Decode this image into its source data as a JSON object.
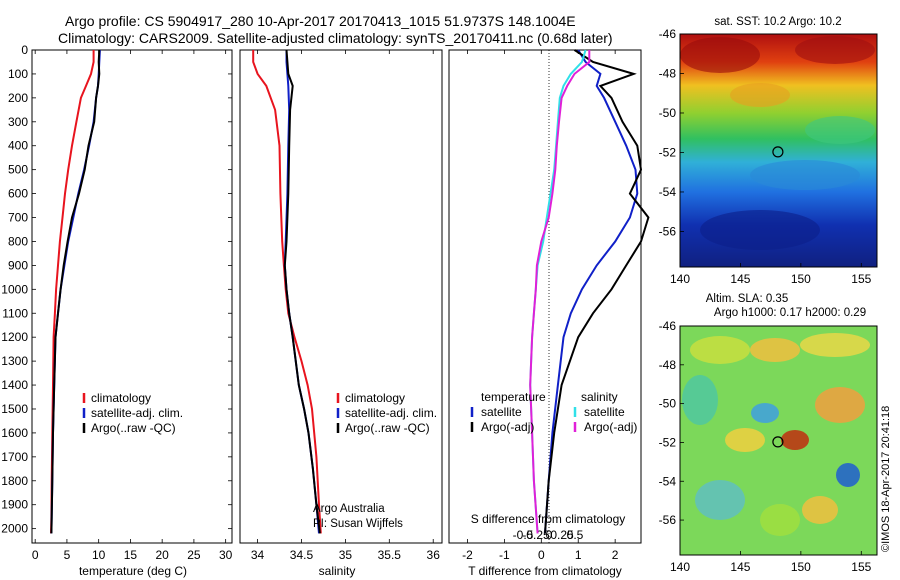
{
  "header": {
    "line1": "Argo profile: CS 5904917_280 10-Apr-2017 20170413_1015 51.9737S 148.1004E",
    "line2": "Climatology: CARS2009. Satellite-adjusted climatology: synTS_20170411.nc (0.68d later)"
  },
  "colors": {
    "climatology": "#e8141e",
    "satellite": "#1020c8",
    "argo": "#000000",
    "satellite_s": "#30e0e8",
    "argo_s": "#e020d8"
  },
  "chart_data": [
    {
      "type": "line",
      "id": "temperature",
      "xlabel": "temperature (deg C)",
      "ylabel": "",
      "xlim": [
        -0.5,
        31
      ],
      "ylim": [
        0,
        2060
      ],
      "y_inverted": true,
      "xticks": [
        0,
        5,
        10,
        15,
        20,
        25,
        30
      ],
      "yticks": [
        0,
        100,
        200,
        300,
        400,
        500,
        600,
        700,
        800,
        900,
        1000,
        1100,
        1200,
        1300,
        1400,
        1500,
        1600,
        1700,
        1800,
        1900,
        2000
      ],
      "legend": {
        "placement": "lower-center",
        "entries": [
          "climatology",
          "satellite-adj. clim.",
          "Argo(..raw -QC)"
        ]
      },
      "series": [
        {
          "name": "climatology",
          "color": "#e8141e",
          "x": [
            9.2,
            9.2,
            8.8,
            8.0,
            7.2,
            6.5,
            5.8,
            5.2,
            4.7,
            4.3,
            3.9,
            3.6,
            3.3,
            3.1,
            2.9,
            2.8,
            2.7,
            2.6,
            2.55,
            2.5
          ],
          "y": [
            0,
            50,
            100,
            150,
            200,
            300,
            400,
            500,
            600,
            700,
            800,
            900,
            1000,
            1100,
            1200,
            1400,
            1600,
            1800,
            1950,
            2020
          ]
        },
        {
          "name": "satellite-adj. clim.",
          "color": "#1020c8",
          "x": [
            10.2,
            10.1,
            10.0,
            9.9,
            9.6,
            9.2,
            8.5,
            7.7,
            6.8,
            6.0,
            5.2,
            4.6,
            4.0,
            3.6,
            3.2,
            3.0,
            2.8,
            2.7,
            2.6,
            2.55
          ],
          "y": [
            0,
            50,
            100,
            150,
            200,
            300,
            400,
            500,
            600,
            700,
            800,
            900,
            1000,
            1100,
            1200,
            1400,
            1600,
            1800,
            1950,
            2020
          ]
        },
        {
          "name": "Argo(..raw -QC)",
          "color": "#000000",
          "x": [
            10.1,
            10.0,
            10.1,
            9.9,
            9.6,
            9.3,
            8.4,
            7.8,
            6.9,
            5.8,
            5.1,
            4.5,
            4.0,
            3.6,
            3.2,
            3.0,
            2.8,
            2.7,
            2.6,
            2.55
          ],
          "y": [
            0,
            50,
            100,
            150,
            200,
            300,
            400,
            500,
            600,
            700,
            800,
            900,
            1000,
            1100,
            1200,
            1400,
            1600,
            1800,
            1950,
            2020
          ]
        }
      ]
    },
    {
      "type": "line",
      "id": "salinity",
      "xlabel": "salinity",
      "ylabel": "",
      "xlim": [
        33.8,
        36.1
      ],
      "ylim": [
        0,
        2060
      ],
      "y_inverted": true,
      "xticks": [
        34,
        34.5,
        35,
        35.5,
        36
      ],
      "xticklabels": [
        "34",
        "34.5",
        "35",
        "35.5",
        "36"
      ],
      "legend": {
        "placement": "lower-center",
        "entries": [
          "climatology",
          "satellite-adj. clim.",
          "Argo(..raw -QC)"
        ]
      },
      "annotations": [
        "Argo Australia",
        "PI: Susan Wijffels"
      ],
      "series": [
        {
          "name": "climatology",
          "color": "#e8141e",
          "x": [
            33.95,
            33.95,
            34.0,
            34.1,
            34.2,
            34.25,
            34.26,
            34.28,
            34.3,
            34.32,
            34.35,
            34.42,
            34.5,
            34.57,
            34.62,
            34.67,
            34.7,
            34.72
          ],
          "y": [
            0,
            50,
            100,
            150,
            250,
            400,
            600,
            800,
            900,
            1000,
            1100,
            1200,
            1300,
            1400,
            1500,
            1700,
            1900,
            2020
          ]
        },
        {
          "name": "satellite-adj. clim.",
          "color": "#1020c8",
          "x": [
            34.33,
            34.33,
            34.34,
            34.35,
            34.36,
            34.35,
            34.34,
            34.32,
            34.31,
            34.33,
            34.36,
            34.4,
            34.47,
            34.53,
            34.58,
            34.63,
            34.67,
            34.7
          ],
          "y": [
            0,
            50,
            100,
            150,
            250,
            400,
            600,
            800,
            900,
            1000,
            1100,
            1200,
            1400,
            1500,
            1600,
            1750,
            1900,
            2020
          ]
        },
        {
          "name": "Argo(..raw -QC)",
          "color": "#000000",
          "x": [
            34.33,
            34.34,
            34.35,
            34.4,
            34.37,
            34.36,
            34.35,
            34.33,
            34.31,
            34.33,
            34.36,
            34.4,
            34.47,
            34.53,
            34.58,
            34.63,
            34.67,
            34.71
          ],
          "y": [
            0,
            50,
            100,
            150,
            250,
            400,
            600,
            800,
            900,
            1000,
            1100,
            1200,
            1400,
            1500,
            1600,
            1750,
            1900,
            2020
          ]
        }
      ]
    },
    {
      "type": "line",
      "id": "difference",
      "xlabel": "T difference from climatology",
      "xlabel_top": "S difference from climatology",
      "xlim": [
        -2.5,
        2.7
      ],
      "ylim": [
        0,
        2060
      ],
      "y_inverted": true,
      "xticks": [
        -2,
        -1,
        0,
        1,
        2
      ],
      "sticks": [
        -0.5,
        -0.25,
        0,
        0.25,
        0.5
      ],
      "sticklabels": [
        "-0.5",
        "-0.25",
        "0",
        "0.25",
        "0.5"
      ],
      "legend": {
        "placement": "lower-center",
        "group_titles": [
          "temperature",
          "salinity"
        ],
        "entries": [
          "satellite",
          "Argo(-adj)",
          "satellite",
          "Argo(-adj)"
        ]
      },
      "series": [
        {
          "name": "satellite",
          "color": "#1020c8",
          "x": [
            1.0,
            1.2,
            1.6,
            1.5,
            1.7,
            2.0,
            2.3,
            2.55,
            2.6,
            2.4,
            2.0,
            1.5,
            1.1,
            0.8,
            0.6,
            0.45,
            0.3,
            0.2,
            0.1
          ],
          "y": [
            0,
            50,
            100,
            150,
            200,
            300,
            400,
            500,
            600,
            700,
            800,
            900,
            1000,
            1100,
            1200,
            1400,
            1600,
            1800,
            2020
          ]
        },
        {
          "name": "Argo(-adj)",
          "color": "#000000",
          "x": [
            0.9,
            1.4,
            2.5,
            1.6,
            1.9,
            2.2,
            2.6,
            2.7,
            2.4,
            2.9,
            2.7,
            2.3,
            1.9,
            1.4,
            1.0,
            0.55,
            0.35,
            0.2,
            0.1
          ],
          "y": [
            0,
            50,
            100,
            150,
            200,
            300,
            400,
            500,
            600,
            700,
            800,
            900,
            1000,
            1100,
            1200,
            1400,
            1600,
            1800,
            2020
          ]
        },
        {
          "name": "satellite",
          "color": "#30e0e8",
          "x": [
            1.2,
            1.1,
            0.8,
            0.6,
            0.5,
            0.45,
            0.4,
            0.35,
            0.25,
            0.15,
            0.05,
            -0.1,
            -0.15,
            -0.2,
            -0.25,
            -0.3,
            -0.25,
            -0.2,
            -0.1
          ],
          "y": [
            0,
            50,
            100,
            150,
            200,
            300,
            400,
            500,
            600,
            700,
            800,
            900,
            1000,
            1100,
            1200,
            1400,
            1600,
            1800,
            2020
          ]
        },
        {
          "name": "Argo(-adj)",
          "color": "#e020d8",
          "x": [
            1.3,
            1.3,
            0.9,
            0.7,
            0.55,
            0.48,
            0.42,
            0.38,
            0.3,
            0.2,
            0.0,
            -0.12,
            -0.15,
            -0.2,
            -0.25,
            -0.3,
            -0.25,
            -0.2,
            -0.1
          ],
          "y": [
            0,
            50,
            100,
            150,
            200,
            300,
            400,
            500,
            600,
            700,
            800,
            900,
            1000,
            1100,
            1200,
            1400,
            1600,
            1800,
            2020
          ]
        }
      ]
    },
    {
      "type": "heatmap",
      "id": "sst-map",
      "title": "sat. SST: 10.2  Argo: 10.2",
      "xlim": [
        140,
        156.3
      ],
      "ylim": [
        -57.8,
        -46
      ],
      "xticks": [
        140,
        145,
        150,
        155
      ],
      "yticks": [
        -46,
        -48,
        -50,
        -52,
        -54,
        -56
      ],
      "marker": {
        "lon": 148.1,
        "lat": -51.97
      }
    },
    {
      "type": "heatmap",
      "id": "sla-map",
      "title_line1": "Altim. SLA: 0.35",
      "title_line2": "Argo h1000: 0.17 h2000: 0.29",
      "xlim": [
        140,
        156.3
      ],
      "ylim": [
        -57.8,
        -46
      ],
      "xticks": [
        140,
        145,
        150,
        155
      ],
      "yticks": [
        -46,
        -48,
        -50,
        -52,
        -54,
        -56
      ],
      "marker": {
        "lon": 148.1,
        "lat": -51.97
      }
    }
  ],
  "credit": "©IMOS 18-Apr-2017 20:41:18"
}
